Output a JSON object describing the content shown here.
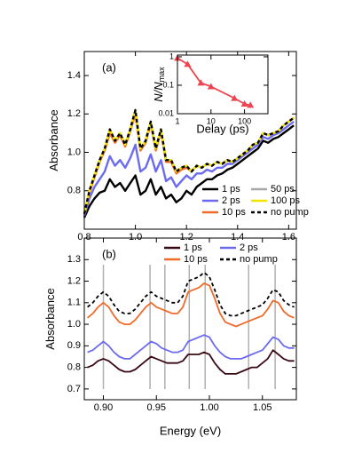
{
  "chart_data": [
    {
      "type": "line",
      "panel_label": "(a)",
      "ylabel": "Absorbance",
      "x": [
        0.8,
        0.82,
        0.84,
        0.86,
        0.88,
        0.9,
        0.92,
        0.94,
        0.96,
        0.98,
        1.0,
        1.02,
        1.04,
        1.06,
        1.08,
        1.1,
        1.12,
        1.14,
        1.16,
        1.18,
        1.2,
        1.22,
        1.24,
        1.26,
        1.28,
        1.3,
        1.32,
        1.34,
        1.36,
        1.38,
        1.4,
        1.42,
        1.44,
        1.46,
        1.48,
        1.5,
        1.52,
        1.54,
        1.56,
        1.58,
        1.6,
        1.62
      ],
      "xlim": [
        0.8,
        1.63
      ],
      "ylim": [
        0.6,
        1.525
      ],
      "xticks": [
        0.8,
        {
          "value": 1,
          "label": "1.0"
        },
        1.2,
        1.4,
        1.6
      ],
      "yticks": [
        0.8,
        {
          "value": 1,
          "label": "1.0"
        },
        1.2,
        1.4
      ],
      "series": [
        {
          "name": "1 ps",
          "color": "#000000",
          "style": "solid",
          "values": [
            0.66,
            0.72,
            0.76,
            0.79,
            0.8,
            0.86,
            0.82,
            0.84,
            0.8,
            0.84,
            0.88,
            0.78,
            0.8,
            0.86,
            0.78,
            0.82,
            0.76,
            0.78,
            0.74,
            0.76,
            0.8,
            0.78,
            0.82,
            0.84,
            0.86,
            0.86,
            0.88,
            0.89,
            0.91,
            0.92,
            0.94,
            0.96,
            0.98,
            1.0,
            1.02,
            1.06,
            1.05,
            1.07,
            1.08,
            1.1,
            1.12,
            1.14
          ]
        },
        {
          "name": "2 ps",
          "color": "#6b6bf0",
          "style": "solid",
          "values": [
            0.67,
            0.76,
            0.82,
            0.86,
            0.9,
            0.98,
            0.93,
            0.96,
            0.92,
            0.97,
            1.04,
            0.9,
            0.92,
            0.99,
            0.9,
            0.96,
            0.85,
            0.87,
            0.82,
            0.85,
            0.88,
            0.86,
            0.89,
            0.89,
            0.91,
            0.9,
            0.92,
            0.92,
            0.94,
            0.94,
            0.96,
            0.98,
            1.0,
            1.02,
            1.04,
            1.08,
            1.07,
            1.09,
            1.1,
            1.12,
            1.14,
            1.16
          ]
        },
        {
          "name": "10 ps",
          "color": "#f06a2a",
          "style": "solid",
          "values": [
            0.68,
            0.79,
            0.87,
            0.95,
            1.01,
            1.1,
            1.05,
            1.09,
            1.03,
            1.11,
            1.2,
            1.01,
            1.05,
            1.15,
            1.01,
            1.11,
            0.95,
            0.95,
            0.89,
            0.91,
            0.92,
            0.9,
            0.93,
            0.92,
            0.94,
            0.93,
            0.95,
            0.94,
            0.96,
            0.95,
            0.97,
            0.99,
            1.01,
            1.04,
            1.05,
            1.1,
            1.09,
            1.1,
            1.11,
            1.14,
            1.16,
            1.18
          ]
        },
        {
          "name": "50 ps",
          "color": "#a8a8a8",
          "style": "solid",
          "values": [
            0.68,
            0.8,
            0.88,
            0.96,
            1.02,
            1.12,
            1.06,
            1.1,
            1.04,
            1.12,
            1.22,
            1.02,
            1.06,
            1.16,
            1.02,
            1.12,
            0.96,
            0.96,
            0.9,
            0.92,
            0.93,
            0.9,
            0.93,
            0.92,
            0.94,
            0.93,
            0.95,
            0.94,
            0.96,
            0.95,
            0.97,
            0.99,
            1.01,
            1.04,
            1.05,
            1.1,
            1.09,
            1.1,
            1.11,
            1.14,
            1.16,
            1.18
          ]
        },
        {
          "name": "100 ps",
          "color": "#f2e600",
          "style": "solid",
          "values": [
            0.68,
            0.8,
            0.88,
            0.96,
            1.02,
            1.12,
            1.06,
            1.1,
            1.04,
            1.12,
            1.22,
            1.02,
            1.06,
            1.16,
            1.02,
            1.12,
            0.96,
            0.96,
            0.9,
            0.92,
            0.93,
            0.9,
            0.93,
            0.92,
            0.94,
            0.93,
            0.95,
            0.94,
            0.96,
            0.95,
            0.97,
            0.99,
            1.01,
            1.04,
            1.05,
            1.1,
            1.09,
            1.1,
            1.11,
            1.14,
            1.16,
            1.18
          ]
        },
        {
          "name": "no pump",
          "color": "#000000",
          "style": "dashed",
          "values": [
            0.68,
            0.8,
            0.88,
            0.96,
            1.02,
            1.12,
            1.06,
            1.1,
            1.04,
            1.12,
            1.22,
            1.02,
            1.06,
            1.16,
            1.02,
            1.12,
            0.96,
            0.96,
            0.9,
            0.92,
            0.93,
            0.9,
            0.93,
            0.92,
            0.94,
            0.93,
            0.95,
            0.94,
            0.96,
            0.95,
            0.97,
            0.99,
            1.01,
            1.04,
            1.05,
            1.1,
            1.09,
            1.1,
            1.11,
            1.14,
            1.16,
            1.18
          ]
        }
      ]
    },
    {
      "type": "line",
      "log_x": true,
      "log_y": true,
      "xlabel": "Delay (ps)",
      "ylabel": "N/N",
      "ylabel_subscript": "max",
      "x": [
        1,
        2,
        5,
        10,
        50,
        100,
        150
      ],
      "xlim": [
        1,
        500
      ],
      "ylim": [
        0.01,
        1.15
      ],
      "xticks": [
        1,
        10,
        100
      ],
      "yticks": [
        0.01,
        0.1,
        1
      ],
      "series": [
        {
          "color": "#ee4450",
          "style": "solid",
          "marker": "triangle",
          "values": [
            0.9,
            0.55,
            0.12,
            0.09,
            0.035,
            0.022,
            0.02
          ]
        }
      ]
    },
    {
      "type": "line",
      "panel_label": "(b)",
      "xlabel": "Energy (eV)",
      "ylabel": "Absorbance",
      "x": [
        0.885,
        0.89,
        0.895,
        0.9,
        0.905,
        0.91,
        0.915,
        0.92,
        0.925,
        0.93,
        0.935,
        0.94,
        0.945,
        0.95,
        0.955,
        0.96,
        0.965,
        0.97,
        0.975,
        0.98,
        0.985,
        0.99,
        0.995,
        1.0,
        1.005,
        1.01,
        1.015,
        1.02,
        1.025,
        1.03,
        1.035,
        1.04,
        1.045,
        1.05,
        1.055,
        1.06,
        1.065,
        1.07,
        1.075,
        1.08
      ],
      "xlim": [
        0.882,
        1.082
      ],
      "ylim": [
        0.65,
        1.4
      ],
      "xticks": [
        {
          "value": 0.9,
          "label": "0.90"
        },
        0.95,
        {
          "value": 1,
          "label": "1.00"
        },
        1.05
      ],
      "yticks": [
        0.7,
        0.8,
        0.9,
        {
          "value": 1,
          "label": "1.0"
        },
        1.1,
        1.2,
        1.3
      ],
      "vlines": [
        0.9,
        0.944,
        0.958,
        0.981,
        0.996,
        1.037,
        1.062
      ],
      "vline_color": "#b0b0b0",
      "series": [
        {
          "name": "1 ps",
          "color": "#3a0a14",
          "style": "solid",
          "values": [
            0.8,
            0.81,
            0.83,
            0.84,
            0.83,
            0.81,
            0.79,
            0.78,
            0.78,
            0.79,
            0.81,
            0.83,
            0.85,
            0.84,
            0.83,
            0.82,
            0.82,
            0.82,
            0.83,
            0.86,
            0.86,
            0.86,
            0.87,
            0.86,
            0.82,
            0.79,
            0.77,
            0.77,
            0.77,
            0.78,
            0.79,
            0.8,
            0.8,
            0.82,
            0.84,
            0.88,
            0.86,
            0.84,
            0.83,
            0.83
          ]
        },
        {
          "name": "2 ps",
          "color": "#6b6bf0",
          "style": "solid",
          "values": [
            0.87,
            0.88,
            0.9,
            0.92,
            0.9,
            0.87,
            0.85,
            0.84,
            0.84,
            0.86,
            0.88,
            0.9,
            0.92,
            0.91,
            0.89,
            0.88,
            0.87,
            0.87,
            0.88,
            0.92,
            0.93,
            0.94,
            0.95,
            0.94,
            0.9,
            0.87,
            0.85,
            0.84,
            0.84,
            0.84,
            0.85,
            0.86,
            0.87,
            0.88,
            0.91,
            0.94,
            0.93,
            0.9,
            0.89,
            0.89
          ]
        },
        {
          "name": "10 ps",
          "color": "#f06a2a",
          "style": "solid",
          "values": [
            1.03,
            1.05,
            1.08,
            1.1,
            1.08,
            1.04,
            1.01,
            1.0,
            1.0,
            1.02,
            1.05,
            1.08,
            1.1,
            1.08,
            1.07,
            1.06,
            1.05,
            1.05,
            1.08,
            1.15,
            1.16,
            1.17,
            1.19,
            1.18,
            1.12,
            1.05,
            1.01,
            1.0,
            0.99,
            1.0,
            1.01,
            1.02,
            1.03,
            1.04,
            1.07,
            1.11,
            1.1,
            1.06,
            1.04,
            1.03
          ]
        },
        {
          "name": "no pump",
          "color": "#000000",
          "style": "dashed",
          "values": [
            1.08,
            1.1,
            1.13,
            1.15,
            1.13,
            1.09,
            1.06,
            1.05,
            1.05,
            1.07,
            1.1,
            1.13,
            1.15,
            1.13,
            1.12,
            1.11,
            1.1,
            1.1,
            1.13,
            1.2,
            1.21,
            1.22,
            1.24,
            1.22,
            1.16,
            1.09,
            1.05,
            1.04,
            1.04,
            1.05,
            1.06,
            1.07,
            1.08,
            1.09,
            1.12,
            1.16,
            1.15,
            1.11,
            1.09,
            1.08
          ]
        }
      ]
    }
  ]
}
